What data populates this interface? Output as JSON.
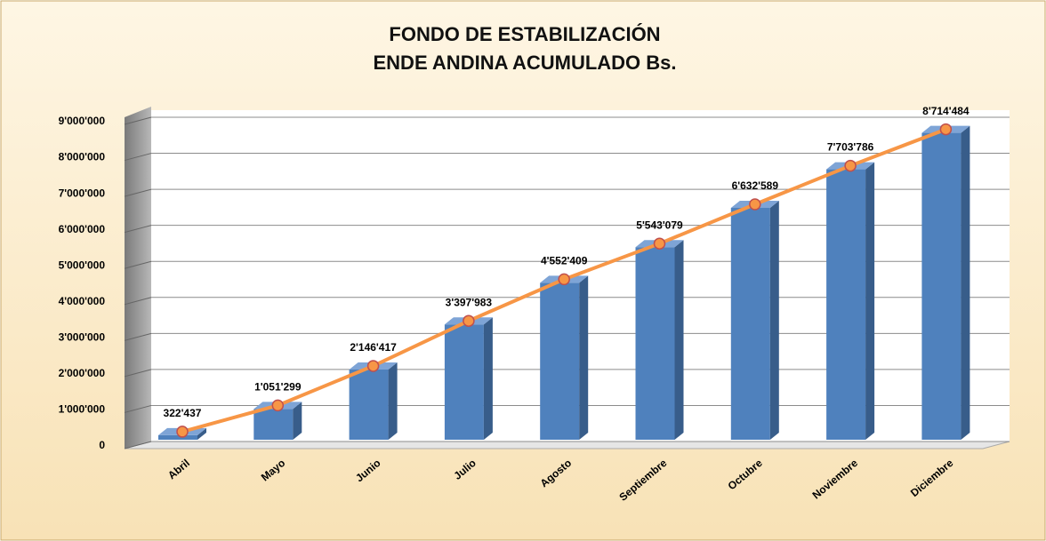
{
  "chart_data": {
    "type": "bar",
    "title": [
      "FONDO DE ESTABILIZACIÓN",
      "ENDE ANDINA ACUMULADO Bs."
    ],
    "categories": [
      "Abril",
      "Mayo",
      "Junio",
      "Julio",
      "Agosto",
      "Septiembre",
      "Octubre",
      "Noviembre",
      "Diciembre"
    ],
    "series": [
      {
        "color": "#4f81bd",
        "line_color": "#f79646",
        "values": [
          322437,
          1051299,
          2146417,
          3397983,
          4552409,
          5543079,
          6632589,
          7703786,
          8714484
        ],
        "value_labels": [
          "322'437",
          "1'051'299",
          "2'146'417",
          "3'397'983",
          "4'552'409",
          "5'543'079",
          "6'632'589",
          "7'703'786",
          "8'714'484"
        ]
      }
    ],
    "ylim": [
      0,
      9000000
    ],
    "yticks": [
      0,
      {
        "value": 1000000,
        "label": "1'000'000"
      },
      {
        "value": 2000000,
        "label": "2'000'000"
      },
      {
        "value": 3000000,
        "label": "3'000'000"
      },
      {
        "value": 4000000,
        "label": "4'000'000"
      },
      {
        "value": 5000000,
        "label": "5'000'000"
      },
      {
        "value": 6000000,
        "label": "6'000'000"
      },
      {
        "value": 7000000,
        "label": "7'000'000"
      },
      {
        "value": 8000000,
        "label": "8'000'000"
      },
      {
        "value": 9000000,
        "label": "9'000'000"
      }
    ],
    "grid": true
  }
}
